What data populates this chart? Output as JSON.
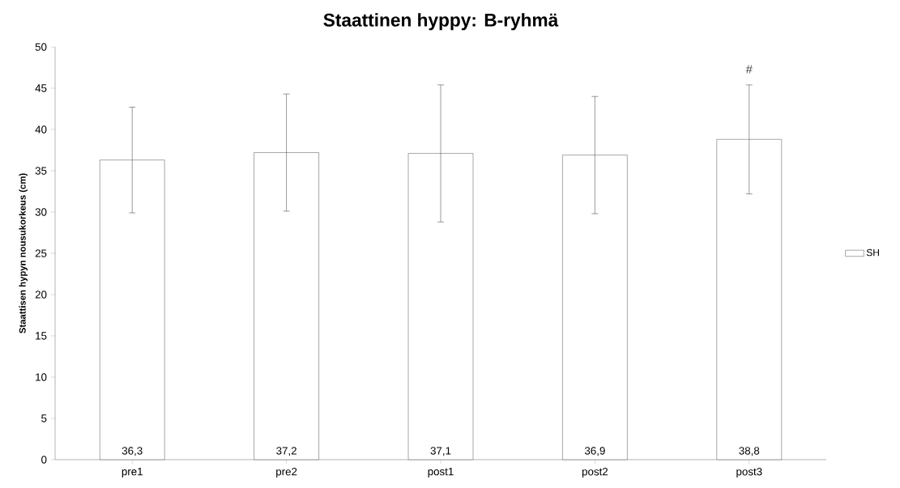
{
  "chart_data": {
    "type": "bar",
    "title": "Staattinen hyppy: B-ryhmä",
    "ylabel": "Staattisen hypyn nousukorkeus (cm)",
    "categories": [
      "pre1",
      "pre2",
      "post1",
      "post2",
      "post3"
    ],
    "series": [
      {
        "name": "SH",
        "color": "#ffffff",
        "values": [
          36.3,
          37.2,
          37.1,
          36.9,
          38.8
        ],
        "errors": [
          6.4,
          7.1,
          8.3,
          7.1,
          6.6
        ],
        "value_labels": [
          "36,3",
          "37,2",
          "37,1",
          "36,9",
          "38,8"
        ]
      }
    ],
    "ylim": [
      0,
      50
    ],
    "yticks": [
      0,
      5,
      10,
      15,
      20,
      25,
      30,
      35,
      40,
      45,
      50
    ],
    "annotations": [
      "#"
    ],
    "grid": false,
    "legend": "right"
  }
}
